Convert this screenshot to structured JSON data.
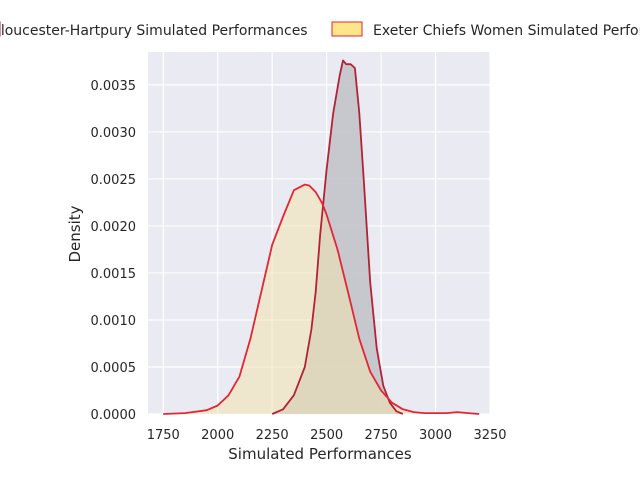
{
  "chart_data": {
    "type": "area",
    "title": "",
    "xlabel": "Simulated Performances",
    "ylabel": "Density",
    "xlim": [
      1680,
      3250
    ],
    "ylim": [
      0,
      0.00385
    ],
    "x_ticks": [
      1750,
      2000,
      2250,
      2500,
      2750,
      3000,
      3250
    ],
    "x_tick_labels": [
      "1750",
      "2000",
      "2250",
      "2500",
      "2750",
      "3000",
      "3250"
    ],
    "y_ticks": [
      0,
      0.0005,
      0.001,
      0.0015,
      0.002,
      0.0025,
      0.003,
      0.0035
    ],
    "y_tick_labels": [
      "0.0000",
      "0.0005",
      "0.0010",
      "0.0015",
      "0.0020",
      "0.0025",
      "0.0030",
      "0.0035"
    ],
    "grid": true,
    "legend_position": "top-center, outside plot",
    "series": [
      {
        "name": "Gloucester-Hartpury Simulated Performances",
        "fill_color": "#c3c3ca",
        "line_color": "#b22234",
        "x": [
          2250,
          2300,
          2350,
          2400,
          2430,
          2450,
          2470,
          2500,
          2530,
          2560,
          2575,
          2590,
          2610,
          2630,
          2650,
          2670,
          2700,
          2730,
          2760,
          2790,
          2820,
          2850
        ],
        "values": [
          0.0,
          5e-05,
          0.0002,
          0.0005,
          0.0009,
          0.0013,
          0.0019,
          0.0026,
          0.0032,
          0.0036,
          0.00376,
          0.00372,
          0.00372,
          0.00368,
          0.0032,
          0.0025,
          0.0014,
          0.0007,
          0.0003,
          0.00012,
          3e-05,
          0.0
        ]
      },
      {
        "name": "Exeter Chiefs Women Simulated Performances",
        "fill_color": "#f0e4b0",
        "line_color": "#e32636",
        "x": [
          1750,
          1850,
          1950,
          2000,
          2050,
          2100,
          2150,
          2200,
          2250,
          2300,
          2350,
          2400,
          2420,
          2450,
          2480,
          2500,
          2550,
          2600,
          2650,
          2700,
          2750,
          2800,
          2850,
          2900,
          2950,
          3000,
          3050,
          3100,
          3150,
          3200
        ],
        "values": [
          0.0,
          1e-05,
          4e-05,
          9e-05,
          0.0002,
          0.0004,
          0.0008,
          0.0013,
          0.0018,
          0.0021,
          0.00238,
          0.00244,
          0.00243,
          0.00236,
          0.00224,
          0.00212,
          0.00175,
          0.00128,
          0.0008,
          0.00045,
          0.00025,
          0.00012,
          5e-05,
          2e-05,
          1e-05,
          1e-05,
          1e-05,
          2e-05,
          1e-05,
          0.0
        ]
      }
    ]
  }
}
